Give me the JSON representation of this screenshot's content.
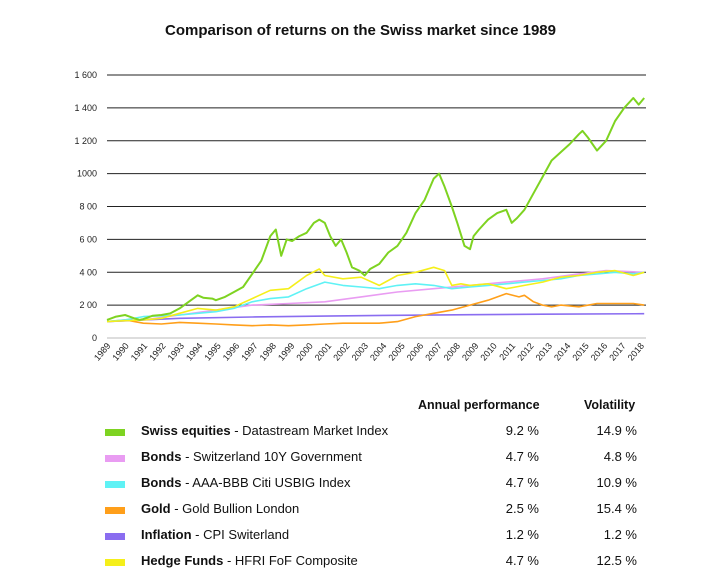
{
  "chart_data": {
    "type": "line",
    "title": "Comparison of returns on the Swiss market since 1989",
    "ylim": [
      0,
      1600
    ],
    "yticks": [
      "0",
      "2 00",
      "4 00",
      "6 00",
      "8 00",
      "1000",
      "1 200",
      "1 400",
      "1 600"
    ],
    "ytick_values": [
      0,
      200,
      400,
      600,
      800,
      1000,
      1200,
      1400,
      1600
    ],
    "xlim": [
      1989,
      2018.7
    ],
    "xticks": [
      "1989",
      "1990",
      "1991",
      "1992",
      "1993",
      "1994",
      "1995",
      "1996",
      "1997",
      "1998",
      "1999",
      "2000",
      "2001",
      "2002",
      "2003",
      "2004",
      "2005",
      "2006",
      "2007",
      "2008",
      "2009",
      "2010",
      "2011",
      "2012",
      "2013",
      "2014",
      "2015",
      "2016",
      "2017",
      "2018"
    ],
    "grid": "horizontal",
    "series": [
      {
        "name": "Swiss equities",
        "desc": "Datastream Market Index",
        "color": "#7ed321",
        "performance": "9.2 %",
        "volatility": "14.9 %",
        "x": [
          1989,
          1989.5,
          1990,
          1990.5,
          1990.8,
          1991,
          1991.5,
          1992,
          1992.5,
          1993,
          1993.5,
          1994,
          1994.3,
          1994.8,
          1995,
          1995.5,
          1996,
          1996.5,
          1997,
          1997.5,
          1998,
          1998.3,
          1998.6,
          1998.9,
          1999.2,
          1999.6,
          2000,
          2000.4,
          2000.7,
          2001,
          2001.3,
          2001.6,
          2001.9,
          2002.2,
          2002.5,
          2002.9,
          2003.2,
          2003.5,
          2004,
          2004.5,
          2005,
          2005.5,
          2006,
          2006.5,
          2007,
          2007.3,
          2007.6,
          2008,
          2008.3,
          2008.7,
          2009,
          2009.2,
          2009.5,
          2010,
          2010.5,
          2011,
          2011.3,
          2011.6,
          2012,
          2012.5,
          2013,
          2013.5,
          2014,
          2014.5,
          2015,
          2015.2,
          2015.5,
          2016,
          2016.5,
          2017,
          2017.5,
          2018,
          2018.3,
          2018.6
        ],
        "y": [
          110,
          130,
          140,
          120,
          110,
          115,
          135,
          140,
          150,
          180,
          220,
          260,
          245,
          240,
          230,
          250,
          280,
          310,
          390,
          470,
          620,
          660,
          500,
          600,
          590,
          620,
          640,
          700,
          720,
          700,
          620,
          560,
          600,
          520,
          430,
          410,
          380,
          420,
          450,
          520,
          560,
          640,
          760,
          840,
          970,
          1000,
          920,
          800,
          700,
          560,
          540,
          620,
          660,
          720,
          760,
          780,
          700,
          730,
          780,
          880,
          980,
          1080,
          1130,
          1180,
          1240,
          1260,
          1220,
          1140,
          1200,
          1320,
          1400,
          1460,
          1420,
          1460
        ]
      },
      {
        "name": "Bonds",
        "desc": "Switzerland 10Y Government",
        "color": "#e99cf2",
        "performance": "4.7 %",
        "volatility": "4.8 %",
        "x": [
          1989,
          1991,
          1993,
          1995,
          1997,
          1999,
          2001,
          2003,
          2005,
          2007,
          2009,
          2011,
          2013,
          2015,
          2016.5,
          2018.6
        ],
        "y": [
          100,
          110,
          140,
          170,
          200,
          210,
          220,
          250,
          280,
          300,
          320,
          340,
          360,
          390,
          410,
          400
        ]
      },
      {
        "name": "Bonds",
        "desc": "AAA-BBB Citi USBIG Index",
        "color": "#5ff2f5",
        "performance": "4.7 %",
        "volatility": "10.9 %",
        "x": [
          1989,
          1990,
          1991,
          1992,
          1993,
          1994,
          1995,
          1996,
          1997,
          1998,
          1999,
          2000,
          2001,
          2002,
          2003,
          2004,
          2005,
          2006,
          2007,
          2008,
          2009,
          2010,
          2011,
          2012,
          2013,
          2014,
          2015,
          2016,
          2017,
          2018,
          2018.6
        ],
        "y": [
          100,
          110,
          130,
          135,
          140,
          150,
          160,
          180,
          220,
          240,
          250,
          300,
          340,
          320,
          310,
          300,
          320,
          330,
          320,
          300,
          310,
          320,
          330,
          340,
          350,
          360,
          380,
          390,
          400,
          390,
          400
        ]
      },
      {
        "name": "Gold",
        "desc": "Gold Bullion London",
        "color": "#ff9f1a",
        "performance": "2.5 %",
        "volatility": "15.4 %",
        "x": [
          1989,
          1990,
          1991,
          1992,
          1993,
          1994,
          1995,
          1996,
          1997,
          1998,
          1999,
          2000,
          2001,
          2002,
          2003,
          2004,
          2005,
          2006,
          2007,
          2008,
          2009,
          2010,
          2011,
          2011.7,
          2012,
          2012.5,
          2013,
          2013.5,
          2014,
          2015,
          2016,
          2017,
          2018,
          2018.6
        ],
        "y": [
          100,
          110,
          90,
          85,
          95,
          90,
          85,
          80,
          75,
          80,
          75,
          80,
          85,
          90,
          90,
          90,
          100,
          130,
          150,
          170,
          200,
          230,
          270,
          250,
          260,
          220,
          200,
          190,
          200,
          190,
          210,
          210,
          210,
          200
        ]
      },
      {
        "name": "Inflation",
        "desc": "CPI Switerland",
        "color": "#8a6df0",
        "performance": "1.2 %",
        "volatility": "1.2 %",
        "x": [
          1989,
          1993,
          1997,
          2001,
          2005,
          2009,
          2013,
          2018.6
        ],
        "y": [
          100,
          120,
          128,
          133,
          138,
          142,
          145,
          148
        ]
      },
      {
        "name": "Hedge Funds",
        "desc": "HFRI FoF Composite",
        "color": "#f5ef1a",
        "performance": "4.7 %",
        "volatility": "12.5 %",
        "x": [
          1989,
          1990,
          1991,
          1992,
          1993,
          1994,
          1995,
          1996,
          1997,
          1998,
          1999,
          2000,
          2000.7,
          2001,
          2002,
          2003,
          2004,
          2005,
          2006,
          2007,
          2007.6,
          2008,
          2008.5,
          2009,
          2010,
          2011,
          2012,
          2013,
          2014,
          2015,
          2016,
          2017,
          2018,
          2018.6
        ],
        "y": [
          100,
          105,
          110,
          120,
          150,
          180,
          170,
          190,
          240,
          290,
          300,
          380,
          420,
          380,
          360,
          370,
          320,
          380,
          400,
          430,
          410,
          320,
          330,
          320,
          330,
          300,
          320,
          340,
          370,
          380,
          400,
          410,
          380,
          400
        ]
      }
    ]
  },
  "legend": {
    "header_performance": "Annual performance",
    "header_volatility": "Volatility"
  }
}
